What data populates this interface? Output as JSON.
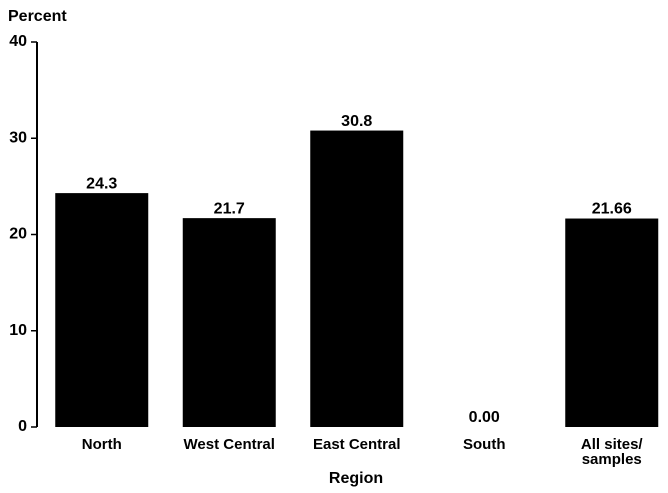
{
  "chart_data": {
    "type": "bar",
    "y_label": "Percent",
    "x_label": "Region",
    "categories": [
      "North",
      "West Central",
      "East Central",
      "South",
      "All sites/\nsamples"
    ],
    "values": [
      24.3,
      21.7,
      30.8,
      0,
      21.66
    ],
    "value_labels": [
      "24.3",
      "21.7",
      "30.8",
      "0.00",
      "21.66"
    ],
    "color": "#000000",
    "ylim": [
      0,
      40
    ],
    "yticks": [
      0,
      10,
      20,
      30,
      40
    ],
    "grid": false
  }
}
